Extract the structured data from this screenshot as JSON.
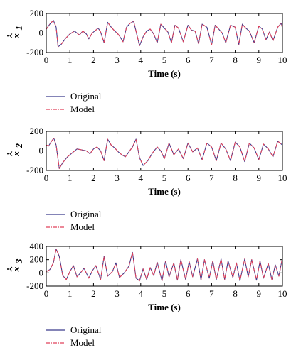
{
  "chart_data": [
    {
      "type": "line",
      "xlabel": "Time (s)",
      "ylabel": "x̂̇₁",
      "ylabel_base": "x",
      "ylabel_sub": "1",
      "xlim": [
        0,
        10
      ],
      "ylim": [
        -200,
        200
      ],
      "xticks": [
        0,
        1,
        2,
        3,
        4,
        5,
        6,
        7,
        8,
        9,
        10
      ],
      "yticks": [
        -200,
        0,
        200
      ],
      "legend": [
        "Original",
        "Model"
      ],
      "legend_position": "below",
      "x": [
        0,
        0.15,
        0.3,
        0.42,
        0.5,
        0.62,
        0.8,
        1.0,
        1.2,
        1.4,
        1.55,
        1.7,
        1.8,
        1.95,
        2.1,
        2.2,
        2.3,
        2.45,
        2.6,
        2.75,
        2.9,
        3.0,
        3.1,
        3.25,
        3.4,
        3.55,
        3.7,
        3.82,
        3.95,
        4.1,
        4.25,
        4.4,
        4.55,
        4.7,
        4.85,
        5.0,
        5.15,
        5.3,
        5.45,
        5.6,
        5.8,
        6.0,
        6.15,
        6.3,
        6.45,
        6.6,
        6.8,
        7.0,
        7.15,
        7.3,
        7.45,
        7.6,
        7.8,
        8.0,
        8.15,
        8.3,
        8.45,
        8.6,
        8.8,
        9.0,
        9.15,
        9.3,
        9.45,
        9.6,
        9.8,
        9.95,
        10.0
      ],
      "series": [
        {
          "name": "Original",
          "color": "#3a3a8c",
          "dash": "",
          "values": [
            40,
            90,
            130,
            60,
            -140,
            -120,
            -60,
            -10,
            20,
            -20,
            20,
            -10,
            -60,
            0,
            30,
            50,
            10,
            -100,
            110,
            60,
            20,
            0,
            -30,
            -90,
            60,
            100,
            120,
            0,
            -130,
            -40,
            20,
            40,
            -10,
            -100,
            90,
            50,
            10,
            -100,
            80,
            50,
            -90,
            80,
            30,
            20,
            -110,
            90,
            60,
            -120,
            80,
            40,
            0,
            -100,
            80,
            60,
            -120,
            90,
            50,
            20,
            -100,
            70,
            40,
            -70,
            10,
            -80,
            60,
            100,
            50
          ]
        },
        {
          "name": "Model",
          "color": "#e0405a",
          "dash": "5,2,1,2",
          "values": [
            40,
            90,
            130,
            60,
            -140,
            -120,
            -60,
            -10,
            20,
            -20,
            20,
            -10,
            -60,
            0,
            30,
            50,
            10,
            -100,
            110,
            60,
            20,
            0,
            -30,
            -90,
            60,
            100,
            120,
            0,
            -130,
            -40,
            20,
            40,
            -10,
            -100,
            90,
            50,
            10,
            -100,
            80,
            50,
            -90,
            80,
            30,
            20,
            -110,
            90,
            60,
            -120,
            80,
            40,
            0,
            -100,
            80,
            60,
            -120,
            90,
            50,
            20,
            -100,
            70,
            40,
            -70,
            10,
            -80,
            60,
            100,
            50
          ]
        }
      ]
    },
    {
      "type": "line",
      "xlabel": "Time (s)",
      "ylabel": "x̂̇₂",
      "ylabel_base": "x",
      "ylabel_sub": "2",
      "xlim": [
        0,
        10
      ],
      "ylim": [
        -200,
        200
      ],
      "xticks": [
        0,
        1,
        2,
        3,
        4,
        5,
        6,
        7,
        8,
        9,
        10
      ],
      "yticks": [
        -200,
        0,
        200
      ],
      "legend": [
        "Original",
        "Model"
      ],
      "legend_position": "below",
      "x": [
        0,
        0.1,
        0.2,
        0.32,
        0.42,
        0.55,
        0.7,
        0.9,
        1.1,
        1.3,
        1.5,
        1.7,
        1.85,
        2.0,
        2.15,
        2.3,
        2.45,
        2.6,
        2.75,
        2.9,
        3.05,
        3.2,
        3.35,
        3.5,
        3.65,
        3.8,
        3.95,
        4.1,
        4.3,
        4.5,
        4.7,
        4.85,
        5.0,
        5.2,
        5.4,
        5.6,
        5.8,
        6.0,
        6.2,
        6.4,
        6.6,
        6.8,
        7.0,
        7.2,
        7.4,
        7.6,
        7.8,
        8.0,
        8.2,
        8.4,
        8.6,
        8.8,
        9.0,
        9.2,
        9.4,
        9.6,
        9.8,
        10.0
      ],
      "series": [
        {
          "name": "Original",
          "color": "#3a3a8c",
          "dash": "",
          "values": [
            60,
            50,
            90,
            130,
            60,
            -180,
            -120,
            -60,
            -20,
            20,
            10,
            0,
            -30,
            20,
            40,
            0,
            -100,
            120,
            60,
            30,
            -10,
            -40,
            -60,
            -10,
            40,
            120,
            -70,
            -150,
            -100,
            -20,
            40,
            0,
            -80,
            80,
            -40,
            20,
            -80,
            80,
            -10,
            30,
            -90,
            80,
            40,
            -100,
            80,
            20,
            -100,
            90,
            40,
            -110,
            80,
            30,
            -90,
            70,
            20,
            -60,
            100,
            60
          ]
        },
        {
          "name": "Model",
          "color": "#e0405a",
          "dash": "5,2,1,2",
          "values": [
            60,
            50,
            90,
            130,
            60,
            -180,
            -120,
            -60,
            -20,
            20,
            10,
            0,
            -30,
            20,
            40,
            0,
            -100,
            120,
            60,
            30,
            -10,
            -40,
            -60,
            -10,
            40,
            120,
            -70,
            -150,
            -100,
            -20,
            40,
            0,
            -80,
            80,
            -40,
            20,
            -80,
            80,
            -10,
            30,
            -90,
            80,
            40,
            -100,
            80,
            20,
            -100,
            90,
            40,
            -110,
            80,
            30,
            -90,
            70,
            20,
            -60,
            100,
            60
          ]
        }
      ]
    },
    {
      "type": "line",
      "xlabel": "Time (s)",
      "ylabel": "x̂̇₃",
      "ylabel_base": "x",
      "ylabel_sub": "3",
      "xlim": [
        0,
        10
      ],
      "ylim": [
        -200,
        400
      ],
      "xticks": [
        0,
        1,
        2,
        3,
        4,
        5,
        6,
        7,
        8,
        9,
        10
      ],
      "yticks": [
        -200,
        0,
        200,
        400
      ],
      "legend": [
        "Original",
        "Model"
      ],
      "legend_position": "below",
      "x": [
        0,
        0.15,
        0.3,
        0.42,
        0.55,
        0.7,
        0.85,
        1.0,
        1.15,
        1.3,
        1.45,
        1.6,
        1.8,
        1.95,
        2.1,
        2.3,
        2.45,
        2.6,
        2.8,
        2.95,
        3.1,
        3.3,
        3.5,
        3.65,
        3.8,
        3.95,
        4.1,
        4.25,
        4.4,
        4.55,
        4.7,
        4.9,
        5.05,
        5.2,
        5.4,
        5.55,
        5.7,
        5.9,
        6.05,
        6.2,
        6.4,
        6.55,
        6.7,
        6.9,
        7.05,
        7.2,
        7.4,
        7.55,
        7.7,
        7.9,
        8.05,
        8.2,
        8.4,
        8.55,
        8.7,
        8.9,
        9.05,
        9.2,
        9.4,
        9.55,
        9.7,
        9.85,
        10.0
      ],
      "series": [
        {
          "name": "Original",
          "color": "#3a3a8c",
          "dash": "",
          "values": [
            20,
            50,
            150,
            360,
            250,
            -40,
            -100,
            20,
            110,
            -60,
            0,
            70,
            -80,
            30,
            110,
            -100,
            250,
            -50,
            20,
            150,
            -70,
            0,
            100,
            310,
            -80,
            -120,
            60,
            -100,
            80,
            -40,
            160,
            -120,
            180,
            -60,
            150,
            -110,
            200,
            -100,
            170,
            -60,
            210,
            -110,
            200,
            -80,
            180,
            -100,
            210,
            -100,
            180,
            -70,
            150,
            -120,
            210,
            -60,
            200,
            -110,
            180,
            -80,
            140,
            -100,
            120,
            -50,
            230
          ]
        },
        {
          "name": "Model",
          "color": "#e0405a",
          "dash": "5,2,1,2",
          "values": [
            20,
            50,
            150,
            360,
            250,
            -40,
            -100,
            20,
            110,
            -60,
            0,
            70,
            -80,
            30,
            110,
            -100,
            250,
            -50,
            20,
            150,
            -70,
            0,
            100,
            310,
            -80,
            -120,
            60,
            -100,
            80,
            -40,
            160,
            -120,
            180,
            -60,
            150,
            -110,
            200,
            -100,
            170,
            -60,
            210,
            -110,
            200,
            -80,
            180,
            -100,
            210,
            -100,
            180,
            -70,
            150,
            -120,
            210,
            -60,
            200,
            -110,
            180,
            -80,
            140,
            -100,
            120,
            -50,
            230
          ]
        }
      ]
    }
  ]
}
